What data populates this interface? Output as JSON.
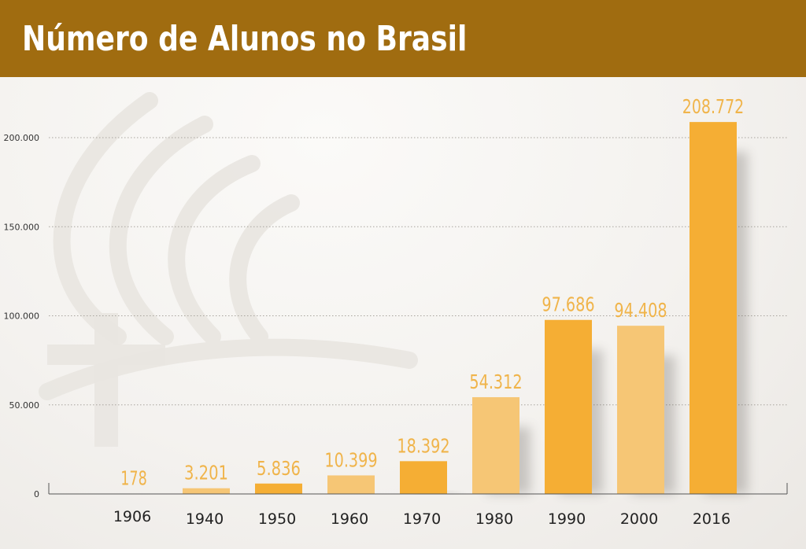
{
  "header": {
    "title": "Número de Alunos no Brasil"
  },
  "colors": {
    "header": "#a06c10",
    "bar_dark": "#f5ae34",
    "bar_light": "#f6c675",
    "value_label": "#f0b44a"
  },
  "chart_data": {
    "type": "bar",
    "title": "Número de Alunos no Brasil",
    "xlabel": "",
    "ylabel": "",
    "ylim": [
      0,
      200000
    ],
    "yticks": [
      0,
      50000,
      100000,
      150000,
      200000
    ],
    "ytick_labels": [
      "0",
      "50.000",
      "100.000",
      "150.000",
      "200.000"
    ],
    "grid": true,
    "categories": [
      "1906",
      "1940",
      "1950",
      "1960",
      "1970",
      "1980",
      "1990",
      "2000",
      "2016"
    ],
    "values": [
      178,
      3201,
      5836,
      10399,
      18392,
      54312,
      97686,
      94408,
      208772
    ],
    "value_labels": [
      "178",
      "3.201",
      "5.836",
      "10.399",
      "18.392",
      "54.312",
      "97.686",
      "94.408",
      "208.772"
    ],
    "bar_shades": [
      "dark",
      "light",
      "dark",
      "light",
      "dark",
      "light",
      "dark",
      "light",
      "dark"
    ]
  }
}
